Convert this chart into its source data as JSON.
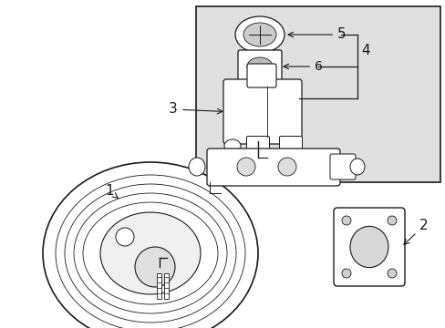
{
  "bg_color": "#ffffff",
  "line_color": "#1a1a1a",
  "shaded_box_color": "#e0e0e0",
  "box_outline_color": "#111111",
  "fig_w": 4.89,
  "fig_h": 3.6,
  "dpi": 100
}
